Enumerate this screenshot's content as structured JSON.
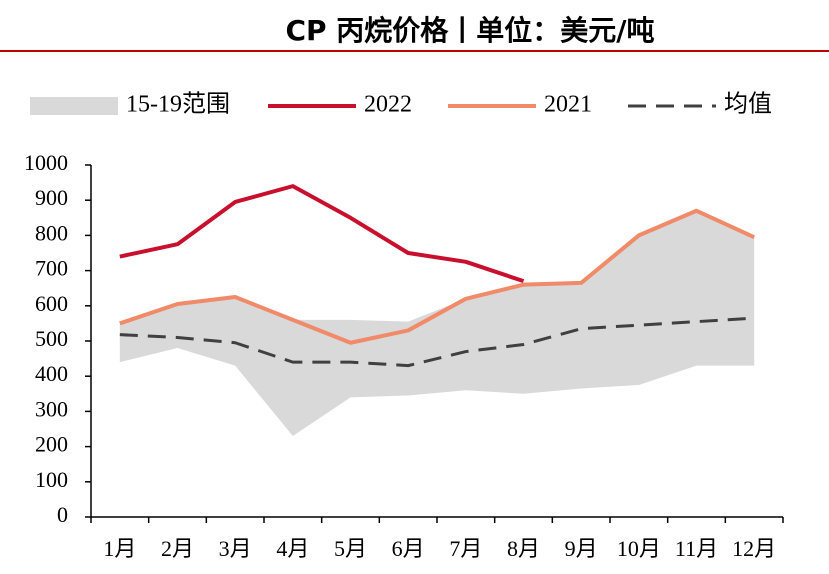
{
  "chart_data": {
    "type": "line",
    "title": "CP 丙烷价格丨单位：美元/吨",
    "categories": [
      "1月",
      "2月",
      "3月",
      "4月",
      "5月",
      "6月",
      "7月",
      "8月",
      "9月",
      "10月",
      "11月",
      "12月"
    ],
    "ylim": [
      0,
      1000
    ],
    "yticks": [
      0,
      100,
      200,
      300,
      400,
      500,
      600,
      700,
      800,
      900,
      1000
    ],
    "series": [
      {
        "name": "15-19范围",
        "kind": "band",
        "color": "#d9d9d9",
        "low": [
          440,
          480,
          430,
          230,
          340,
          345,
          360,
          350,
          365,
          375,
          430,
          430
        ],
        "high": [
          550,
          600,
          625,
          560,
          560,
          555,
          620,
          660,
          665,
          800,
          870,
          795
        ]
      },
      {
        "name": "2022",
        "kind": "line",
        "color": "#c8102e",
        "values": [
          740,
          775,
          895,
          940,
          850,
          750,
          725,
          670,
          null,
          null,
          null,
          null
        ]
      },
      {
        "name": "2021",
        "kind": "line",
        "color": "#f08a68",
        "values": [
          550,
          605,
          625,
          560,
          495,
          530,
          620,
          660,
          665,
          800,
          870,
          795
        ]
      },
      {
        "name": "均值",
        "kind": "dashed",
        "color": "#404040",
        "values": [
          518,
          510,
          495,
          440,
          440,
          430,
          470,
          490,
          535,
          545,
          555,
          565
        ]
      }
    ]
  }
}
